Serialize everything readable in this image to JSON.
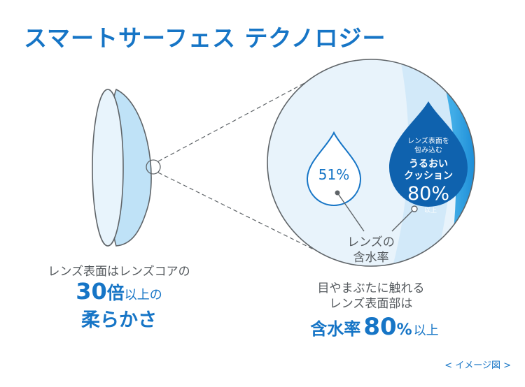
{
  "title": "スマートサーフェス テクノロジー",
  "diagram": {
    "core_percent": "51%",
    "cushion": {
      "line1": "レンズ表面を",
      "line2": "包み込む",
      "line3": "うるおい",
      "line4": "クッション",
      "value": "80%",
      "suffix": "以上"
    },
    "water_label_line1": "レンズの",
    "water_label_line2": "含水率"
  },
  "left_caption": {
    "line1": "レンズ表面はレンズコアの",
    "number": "30",
    "unit": "倍",
    "rest": "以上の",
    "line3": "柔らかさ"
  },
  "right_caption": {
    "line1": "目やまぶたに触れる",
    "line2": "レンズ表面部は",
    "word": "含水率",
    "value": "80",
    "percent": "%",
    "suffix": "以上"
  },
  "footnote": "< イメージ図 >",
  "colors": {
    "brand_blue": "#1675c6",
    "deep_blue": "#0f62ae",
    "light_blue": "#e6f2fb",
    "lens_fill": "#c9e6f8",
    "stroke_gray": "#5f6468"
  }
}
